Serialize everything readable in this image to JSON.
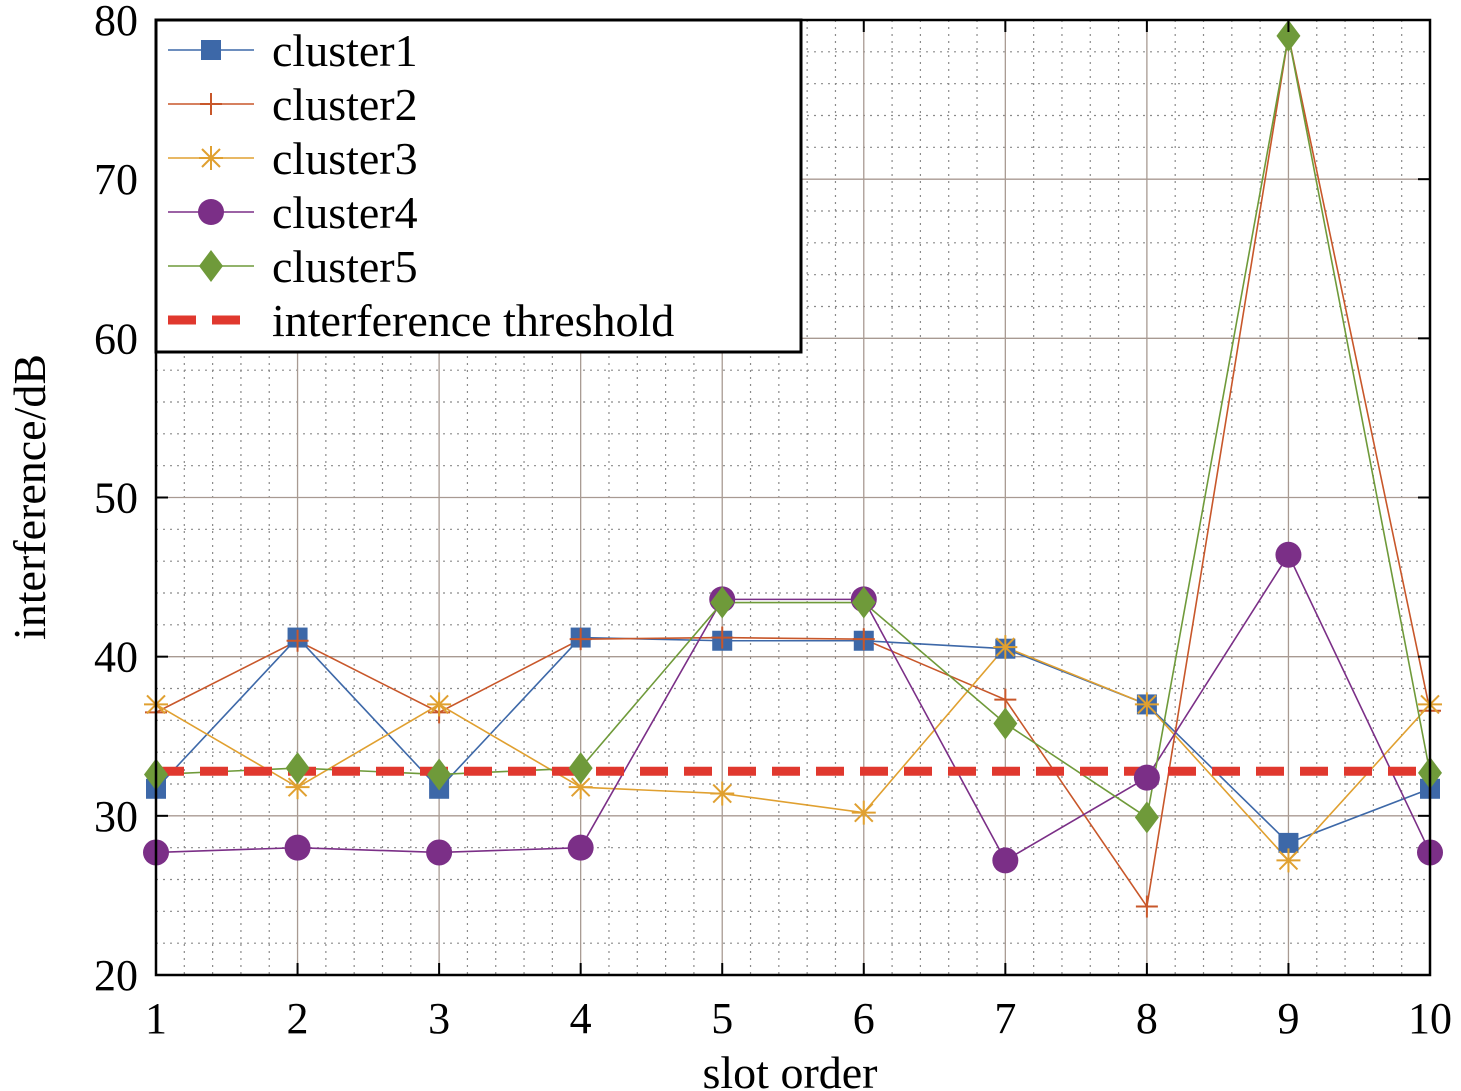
{
  "chart_data": {
    "type": "line",
    "title": "",
    "xlabel": "slot order",
    "ylabel": "interference/dB",
    "x": [
      1,
      2,
      3,
      4,
      5,
      6,
      7,
      8,
      9,
      10
    ],
    "xlim": [
      1,
      10
    ],
    "ylim": [
      20,
      80
    ],
    "xticks": [
      "1",
      "2",
      "3",
      "4",
      "5",
      "6",
      "7",
      "8",
      "9",
      "10"
    ],
    "yticks": [
      "20",
      "30",
      "40",
      "50",
      "60",
      "70",
      "80"
    ],
    "grid": true,
    "minor_grid": true,
    "legend_position": "top-left",
    "series": [
      {
        "name": "cluster1",
        "color": "#3d68a8",
        "marker": "square",
        "values": [
          31.7,
          41.2,
          31.7,
          41.2,
          41.0,
          41.0,
          40.5,
          37.0,
          28.3,
          31.7
        ]
      },
      {
        "name": "cluster2",
        "color": "#c8572a",
        "marker": "plus",
        "values": [
          36.5,
          41.0,
          36.5,
          41.1,
          41.2,
          41.1,
          37.3,
          24.3,
          79.0,
          36.6
        ]
      },
      {
        "name": "cluster3",
        "color": "#e0a030",
        "marker": "star",
        "values": [
          37.0,
          31.8,
          37.0,
          31.8,
          31.4,
          30.2,
          40.6,
          37.0,
          27.2,
          37.0
        ]
      },
      {
        "name": "cluster4",
        "color": "#7b2f87",
        "marker": "circle",
        "values": [
          27.7,
          28.0,
          27.7,
          28.0,
          43.6,
          43.6,
          27.2,
          32.4,
          46.4,
          27.7
        ]
      },
      {
        "name": "cluster5",
        "color": "#6f9a3a",
        "marker": "diamond",
        "values": [
          32.6,
          33.0,
          32.6,
          33.0,
          43.4,
          43.4,
          35.8,
          29.9,
          79.0,
          32.7
        ]
      },
      {
        "name": "interference threshold",
        "color": "#e0382e",
        "marker": "none",
        "dashed": true,
        "values": [
          32.8,
          32.8,
          32.8,
          32.8,
          32.8,
          32.8,
          32.8,
          32.8,
          32.8,
          32.8
        ]
      }
    ]
  }
}
